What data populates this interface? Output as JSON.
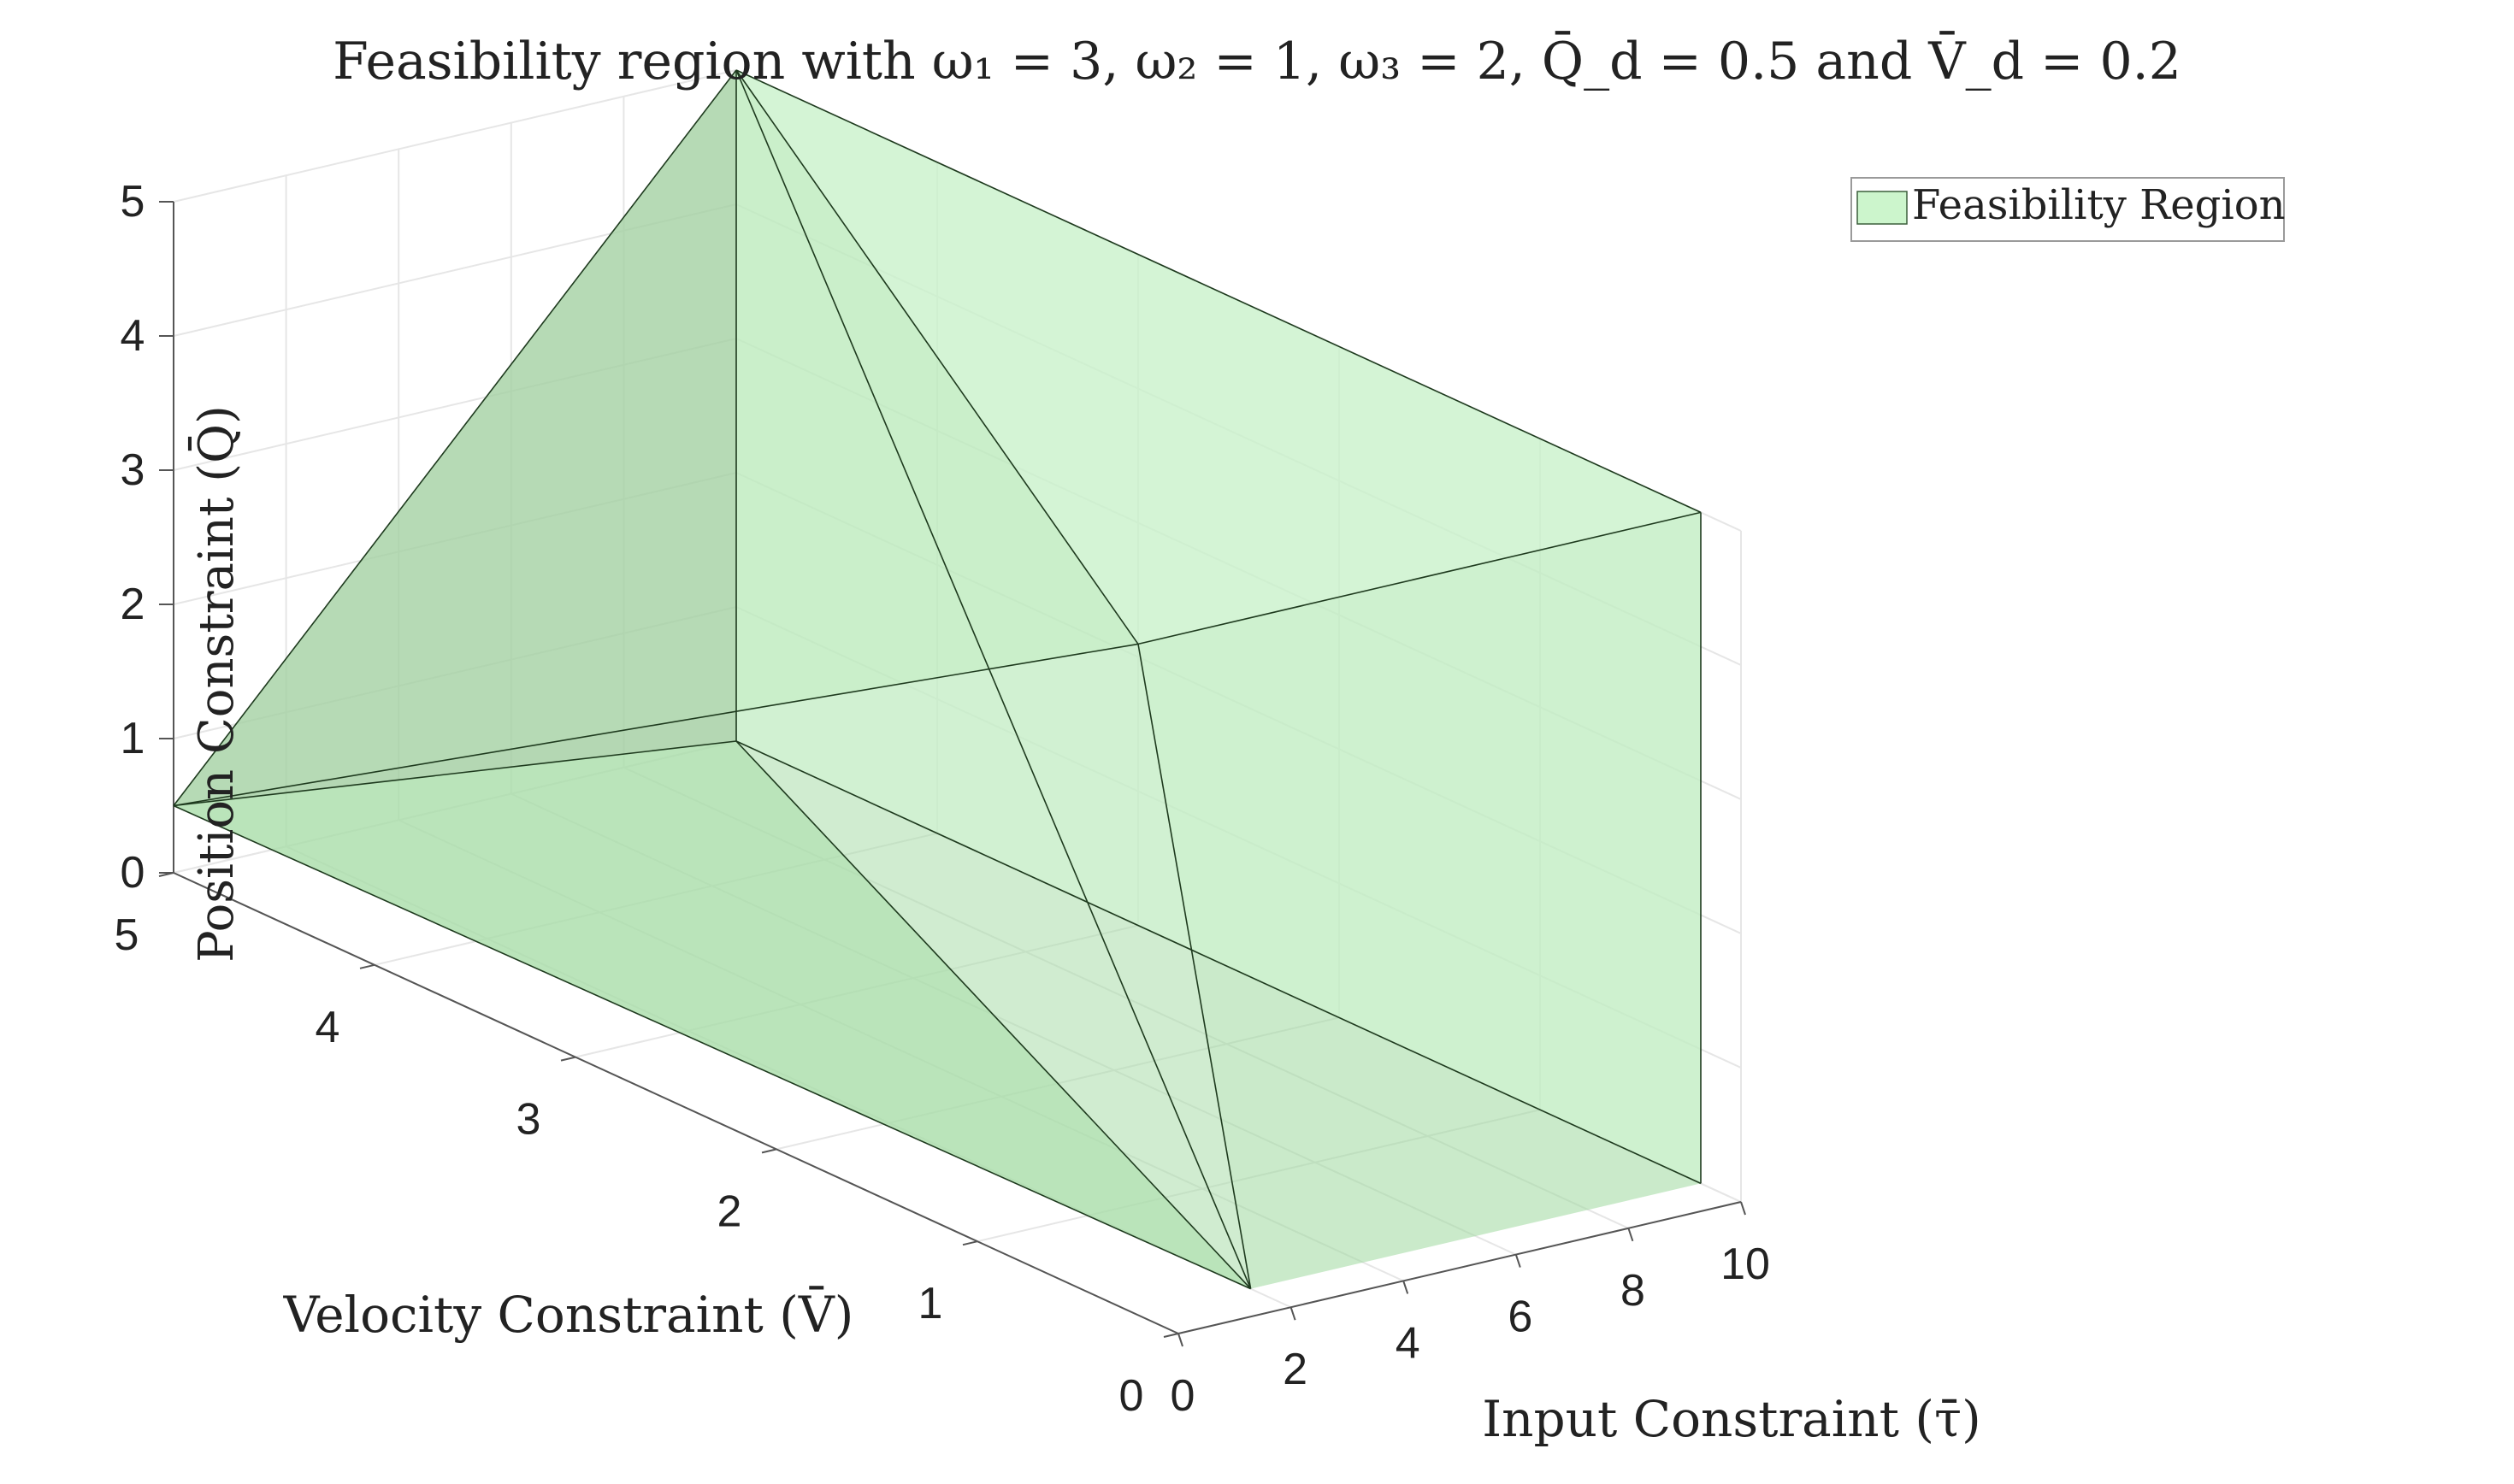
{
  "chart_data": {
    "type": "3d-polyhedron",
    "title": "Feasibility region with ω₁ = 3, ω₂ = 1, ω₃ = 2, Q̄_d = 0.5 and V̄_d = 0.2",
    "xlabel": "Input Constraint (τ̄)",
    "ylabel": "Velocity Constraint (V̄)",
    "zlabel": "Position Constraint (Q̄)",
    "xlim": [
      0,
      10
    ],
    "ylim": [
      0,
      5
    ],
    "zlim": [
      0,
      5
    ],
    "xticks": [
      "0",
      "2",
      "4",
      "6",
      "8",
      "10"
    ],
    "yticks": [
      "0",
      "1",
      "2",
      "3",
      "4",
      "5"
    ],
    "zticks": [
      "0",
      "1",
      "2",
      "3",
      "4",
      "5"
    ],
    "grid": true,
    "legend": {
      "position": "top-right",
      "entries": [
        "Feasibility Region"
      ]
    },
    "colors": {
      "face": "#a8e6a8",
      "edge": "#1e3a1e",
      "axis": "#555555",
      "grid": "#e6e6e6"
    },
    "vertices": [
      {
        "x": 0,
        "y": 5,
        "z": 0.5
      },
      {
        "x": 0,
        "y": 0.2,
        "z": 5
      },
      {
        "x": 10,
        "y": 0.2,
        "z": 5
      },
      {
        "x": 10,
        "y": 5,
        "z": 5
      },
      {
        "x": 10,
        "y": 5,
        "z": 0
      },
      {
        "x": 2,
        "y": 0.2,
        "z": 0
      },
      {
        "x": 10,
        "y": 0.2,
        "z": 0
      },
      {
        "x": 10,
        "y": 0.5,
        "z": 0
      }
    ],
    "faces": [
      [
        0,
        4,
        5
      ],
      [
        0,
        1,
        5
      ],
      [
        1,
        2,
        6,
        5
      ],
      [
        2,
        3,
        4,
        6
      ],
      [
        0,
        1,
        3
      ],
      [
        1,
        2,
        3
      ],
      [
        0,
        3,
        4
      ]
    ],
    "edges": [
      [
        0,
        1
      ],
      [
        0,
        3
      ],
      [
        0,
        4
      ],
      [
        0,
        5
      ],
      [
        1,
        2
      ],
      [
        1,
        3
      ],
      [
        1,
        5
      ],
      [
        2,
        3
      ],
      [
        2,
        6
      ],
      [
        3,
        4
      ],
      [
        3,
        5
      ],
      [
        4,
        5
      ],
      [
        4,
        6
      ]
    ]
  }
}
